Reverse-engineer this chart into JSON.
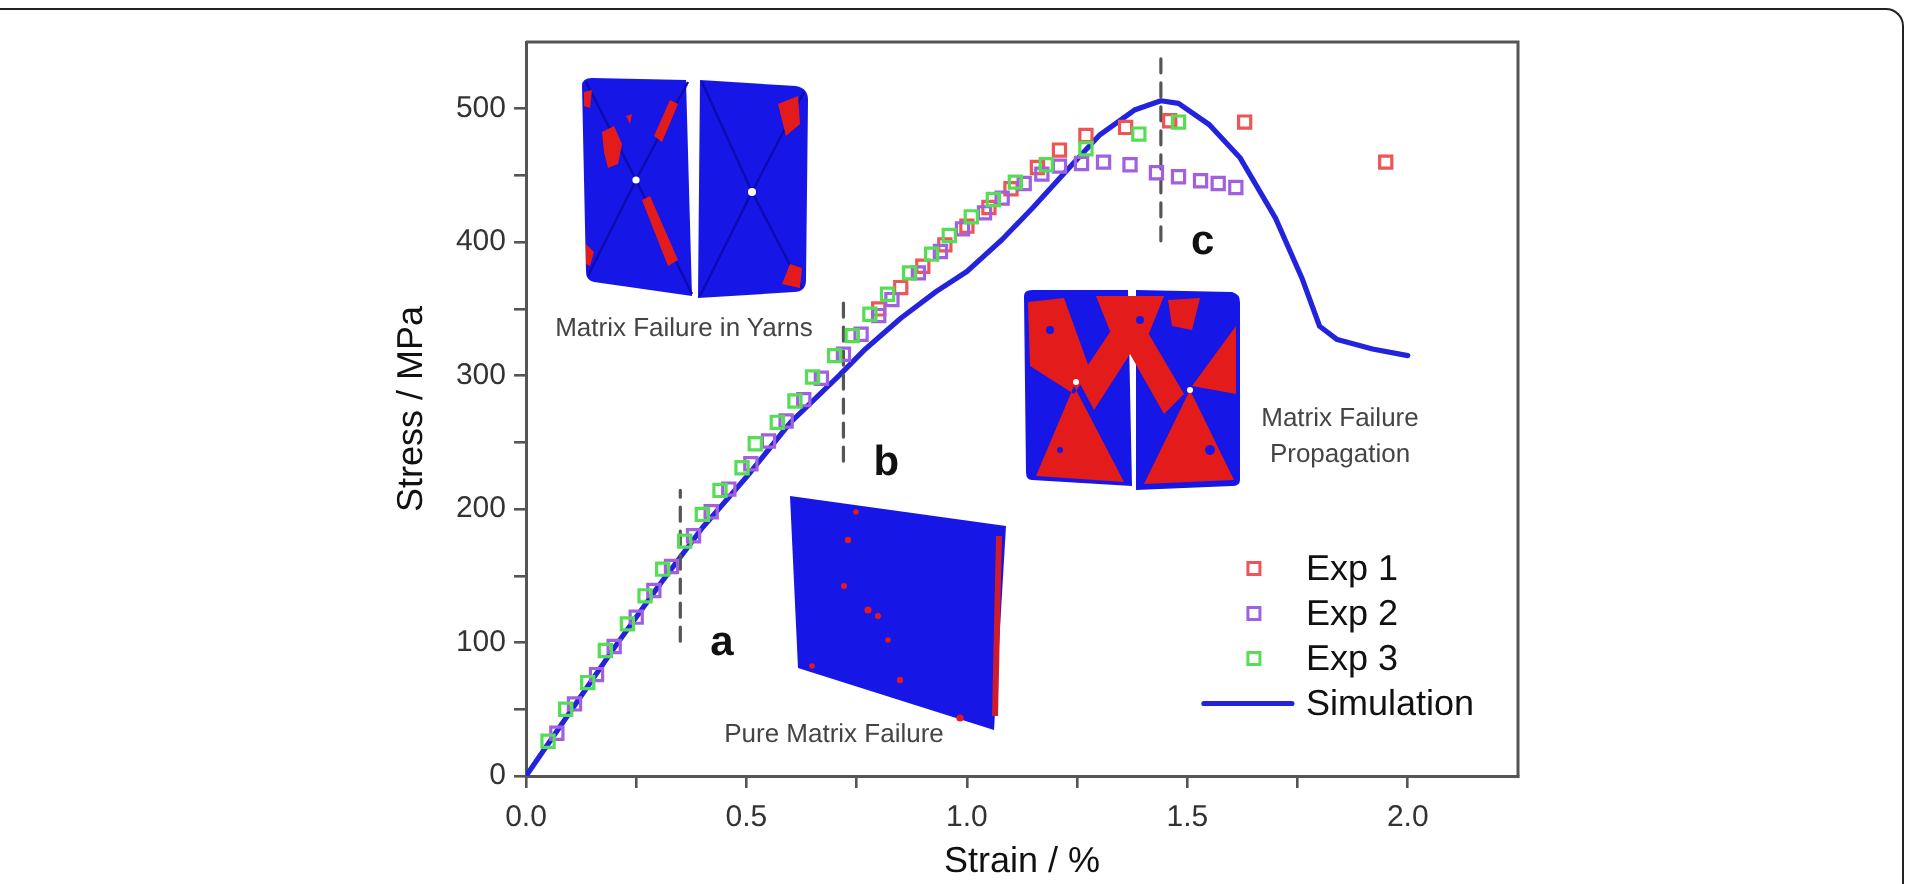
{
  "chart_data": {
    "type": "scatter",
    "xlabel": "Strain / %",
    "ylabel": "Stress / MPa",
    "xlim": [
      0,
      2.25
    ],
    "xticks": [
      {
        "value": 0,
        "label": "0.0"
      },
      {
        "value": 0.25,
        "label": null
      },
      0.5,
      {
        "value": 0.75,
        "label": null
      },
      {
        "value": 1,
        "label": "1.0"
      },
      {
        "value": 1.25,
        "label": null
      },
      1.5,
      {
        "value": 1.75,
        "label": null
      },
      {
        "value": 2,
        "label": "2.0"
      }
    ],
    "ylim": [
      0,
      550
    ],
    "yticks": [
      0,
      {
        "value": 50,
        "label": null
      },
      100,
      {
        "value": 150,
        "label": null
      },
      200,
      {
        "value": 250,
        "label": null
      },
      300,
      {
        "value": 350,
        "label": null
      },
      400,
      {
        "value": 450,
        "label": null
      },
      500
    ],
    "marker": "square",
    "legend": "bottom right",
    "series": [
      {
        "name": "Exp 1",
        "color": "#ee5555",
        "x": [
          0.8,
          0.85,
          0.9,
          0.95,
          1.0,
          1.05,
          1.1,
          1.16,
          1.21,
          1.27,
          1.36,
          1.46,
          1.63,
          1.95
        ],
        "values": [
          350,
          366,
          382,
          398,
          412,
          426,
          440,
          456,
          469,
          480,
          486,
          491,
          490,
          460
        ]
      },
      {
        "name": "Exp 2",
        "color": "#a060e0",
        "x": [
          0.07,
          0.11,
          0.16,
          0.2,
          0.25,
          0.29,
          0.33,
          0.38,
          0.42,
          0.46,
          0.51,
          0.55,
          0.59,
          0.63,
          0.67,
          0.72,
          0.76,
          0.8,
          0.83,
          0.89,
          0.94,
          0.99,
          1.04,
          1.08,
          1.13,
          1.17,
          1.21,
          1.26,
          1.31,
          1.37,
          1.43,
          1.48,
          1.53,
          1.57,
          1.61
        ],
        "values": [
          32,
          54,
          76,
          97,
          119,
          139,
          157,
          180,
          198,
          215,
          234,
          251,
          266,
          282,
          298,
          316,
          331,
          345,
          357,
          377,
          393,
          410,
          422,
          433,
          444,
          451,
          457,
          459,
          460,
          458,
          452,
          449,
          446,
          444,
          441
        ]
      },
      {
        "name": "Exp 3",
        "color": "#55dd55",
        "x": [
          0.05,
          0.09,
          0.14,
          0.18,
          0.23,
          0.27,
          0.31,
          0.36,
          0.4,
          0.44,
          0.49,
          0.52,
          0.57,
          0.61,
          0.65,
          0.7,
          0.74,
          0.78,
          0.82,
          0.87,
          0.92,
          0.96,
          1.01,
          1.06,
          1.11,
          1.18,
          1.27,
          1.39,
          1.48
        ],
        "values": [
          26,
          50,
          70,
          94,
          114,
          135,
          155,
          176,
          196,
          214,
          231,
          249,
          265,
          281,
          299,
          315,
          330,
          346,
          361,
          377,
          391,
          405,
          419,
          432,
          445,
          458,
          470,
          481,
          490
        ]
      },
      {
        "name": "Simulation",
        "type": "line",
        "marker": "none",
        "color": "#2323dd",
        "x": [
          0,
          0.1,
          0.2,
          0.3,
          0.4,
          0.5,
          0.6,
          0.71,
          0.77,
          0.85,
          0.93,
          1.0,
          1.08,
          1.15,
          1.23,
          1.3,
          1.38,
          1.44,
          1.48,
          1.55,
          1.62,
          1.7,
          1.76,
          1.8,
          1.84,
          1.92,
          2.0
        ],
        "values": [
          0,
          48,
          96,
          142,
          186,
          224,
          265,
          300,
          320,
          343,
          363,
          378,
          402,
          426,
          455,
          480,
          499,
          506,
          504,
          488,
          463,
          418,
          373,
          337,
          327,
          320,
          315
        ]
      },
      {
        "type": "line",
        "marker": "none",
        "line_style": "dashed",
        "color": "#555555",
        "x": [
          0.35,
          0.35
        ],
        "values": [
          101,
          214
        ]
      },
      {
        "type": "line",
        "marker": "none",
        "line_style": "dashed",
        "color": "#555555",
        "x": [
          0.72,
          0.72
        ],
        "values": [
          236,
          357
        ]
      },
      {
        "type": "line",
        "marker": "none",
        "line_style": "dashed",
        "color": "#555555",
        "x": [
          1.44,
          1.44
        ],
        "values": [
          401,
          539
        ]
      }
    ],
    "annotations": [
      "Matrix Failure in Yarns",
      "Pure Matrix Failure",
      "Matrix Failure Propagation",
      {
        "text": "a",
        "x": 0.35,
        "y": 101
      },
      {
        "text": "b",
        "x": 0.72,
        "y": 236
      },
      {
        "text": "c",
        "x": 1.44,
        "y": 401
      }
    ]
  }
}
